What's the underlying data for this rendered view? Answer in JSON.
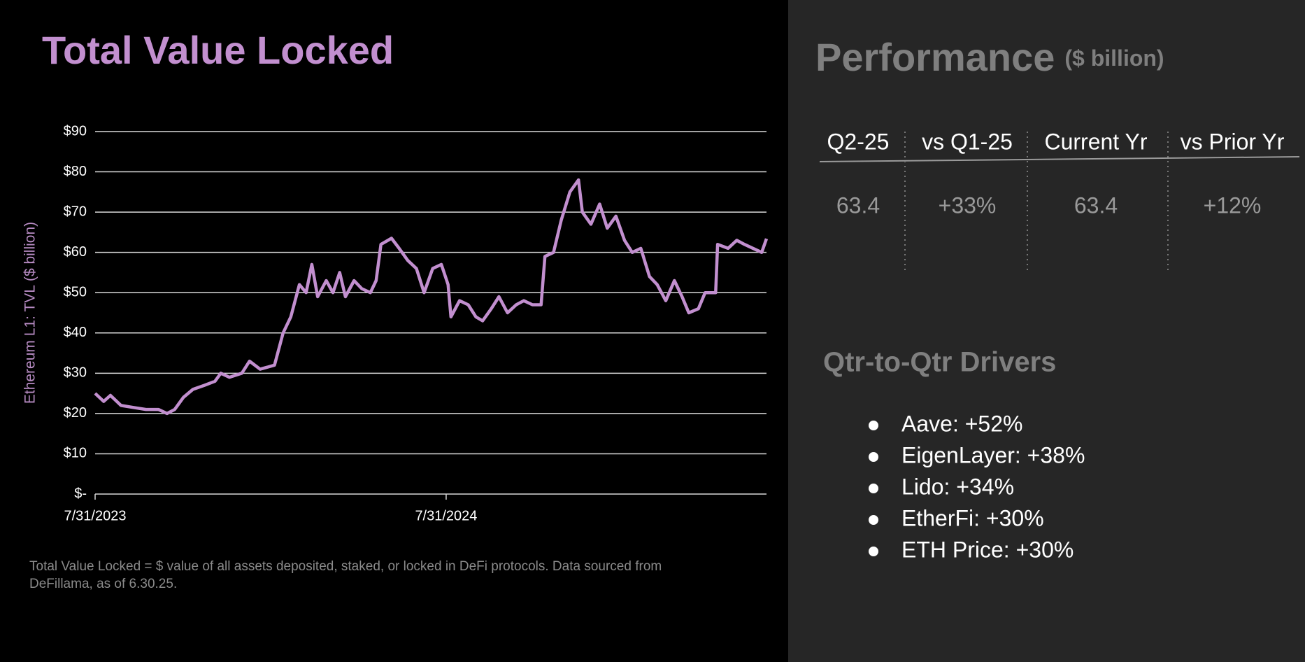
{
  "chart_data": {
    "type": "line",
    "title": "Total Value Locked",
    "y_label": "Ethereum L1: TVL ($ billion)",
    "color": "#c28fcf",
    "x": [
      "7/31/2023",
      "8/9/2023",
      "8/16/2023",
      "8/27/2023",
      "9/9/2023",
      "9/22/2023",
      "10/5/2023",
      "10/14/2023",
      "10/22/2023",
      "10/31/2023",
      "11/10/2023",
      "11/22/2023",
      "12/3/2023",
      "12/9/2023",
      "12/18/2023",
      "12/31/2023",
      "1/8/2024",
      "1/19/2024",
      "2/3/2024",
      "2/12/2024",
      "2/20/2024",
      "2/29/2024",
      "3/7/2024",
      "3/13/2024",
      "3/19/2024",
      "3/28/2024",
      "4/4/2024",
      "4/11/2024",
      "4/17/2024",
      "4/26/2024",
      "5/4/2024",
      "5/13/2024",
      "5/19/2024",
      "5/24/2024",
      "6/4/2024",
      "6/12/2024",
      "6/21/2024",
      "6/30/2024",
      "7/8/2024",
      "7/17/2024",
      "7/26/2024",
      "8/2/2024",
      "8/5/2024",
      "8/14/2024",
      "8/23/2024",
      "8/31/2024",
      "9/7/2024",
      "9/16/2024",
      "9/24/2024",
      "10/3/2024",
      "10/12/2024",
      "10/20/2024",
      "10/29/2024",
      "11/7/2024",
      "11/11/2024",
      "11/20/2024",
      "11/28/2024",
      "12/7/2024",
      "12/16/2024",
      "12/20/2024",
      "12/29/2024",
      "1/7/2025",
      "1/15/2025",
      "1/24/2025",
      "2/2/2025",
      "2/10/2025",
      "2/19/2025",
      "2/28/2025",
      "3/8/2025",
      "3/17/2025",
      "3/26/2025",
      "4/3/2025",
      "4/10/2025",
      "4/20/2025",
      "4/27/2025",
      "5/8/2025",
      "5/10/2025",
      "5/21/2025",
      "5/30/2025",
      "6/7/2025",
      "6/16/2025",
      "6/25/2025",
      "6/30/2025"
    ],
    "values": [
      25,
      23,
      24.5,
      22,
      21.5,
      21,
      21,
      20,
      21,
      24,
      26,
      27,
      28,
      30,
      29,
      30,
      33,
      31,
      32,
      40,
      44,
      52,
      50,
      57,
      49,
      53,
      50,
      55,
      49,
      53,
      51,
      50,
      53,
      62,
      63.5,
      61,
      58,
      56,
      50,
      56,
      57,
      52,
      44,
      48,
      47,
      44,
      43,
      46,
      49,
      45,
      47,
      48,
      47,
      47,
      59,
      60,
      68,
      75,
      78,
      70,
      67,
      72,
      66,
      69,
      63,
      60,
      61,
      54,
      52,
      48,
      53,
      49,
      45,
      46,
      50,
      50,
      62,
      61,
      63,
      62,
      61,
      60,
      63.4
    ],
    "xlim": [
      "7/31/2023",
      "6/30/2025"
    ],
    "xticks": [
      "7/31/2023",
      "7/31/2024"
    ],
    "ylim": [
      0,
      90
    ],
    "yticks": [
      {
        "value": 0,
        "label": "$-"
      },
      {
        "value": 10,
        "label": "$10"
      },
      {
        "value": 20,
        "label": "$20"
      },
      {
        "value": 30,
        "label": "$30"
      },
      {
        "value": 40,
        "label": "$40"
      },
      {
        "value": 50,
        "label": "$50"
      },
      {
        "value": 60,
        "label": "$60"
      },
      {
        "value": 70,
        "label": "$70"
      },
      {
        "value": 80,
        "label": "$80"
      },
      {
        "value": 90,
        "label": "$90"
      }
    ],
    "grid": true,
    "footnote": "Total Value Locked = $ value of all assets deposited, staked, or locked in DeFi protocols. Data sourced from DeFillama, as of 6.30.25."
  },
  "performance": {
    "title": "Performance",
    "unit": "($ billion)",
    "table": {
      "header": [
        "Q2-25",
        "vs Q1-25",
        "Current Yr",
        "vs Prior Yr"
      ],
      "rows": [
        [
          "63.4",
          "+33%",
          "63.4",
          "+12%"
        ]
      ]
    }
  },
  "drivers": {
    "title": "Qtr-to-Qtr Drivers",
    "items": [
      "Aave: +52%",
      "EigenLayer: +38%",
      "Lido: +34%",
      "EtherFi: +30%",
      "ETH Price: +30%"
    ]
  }
}
